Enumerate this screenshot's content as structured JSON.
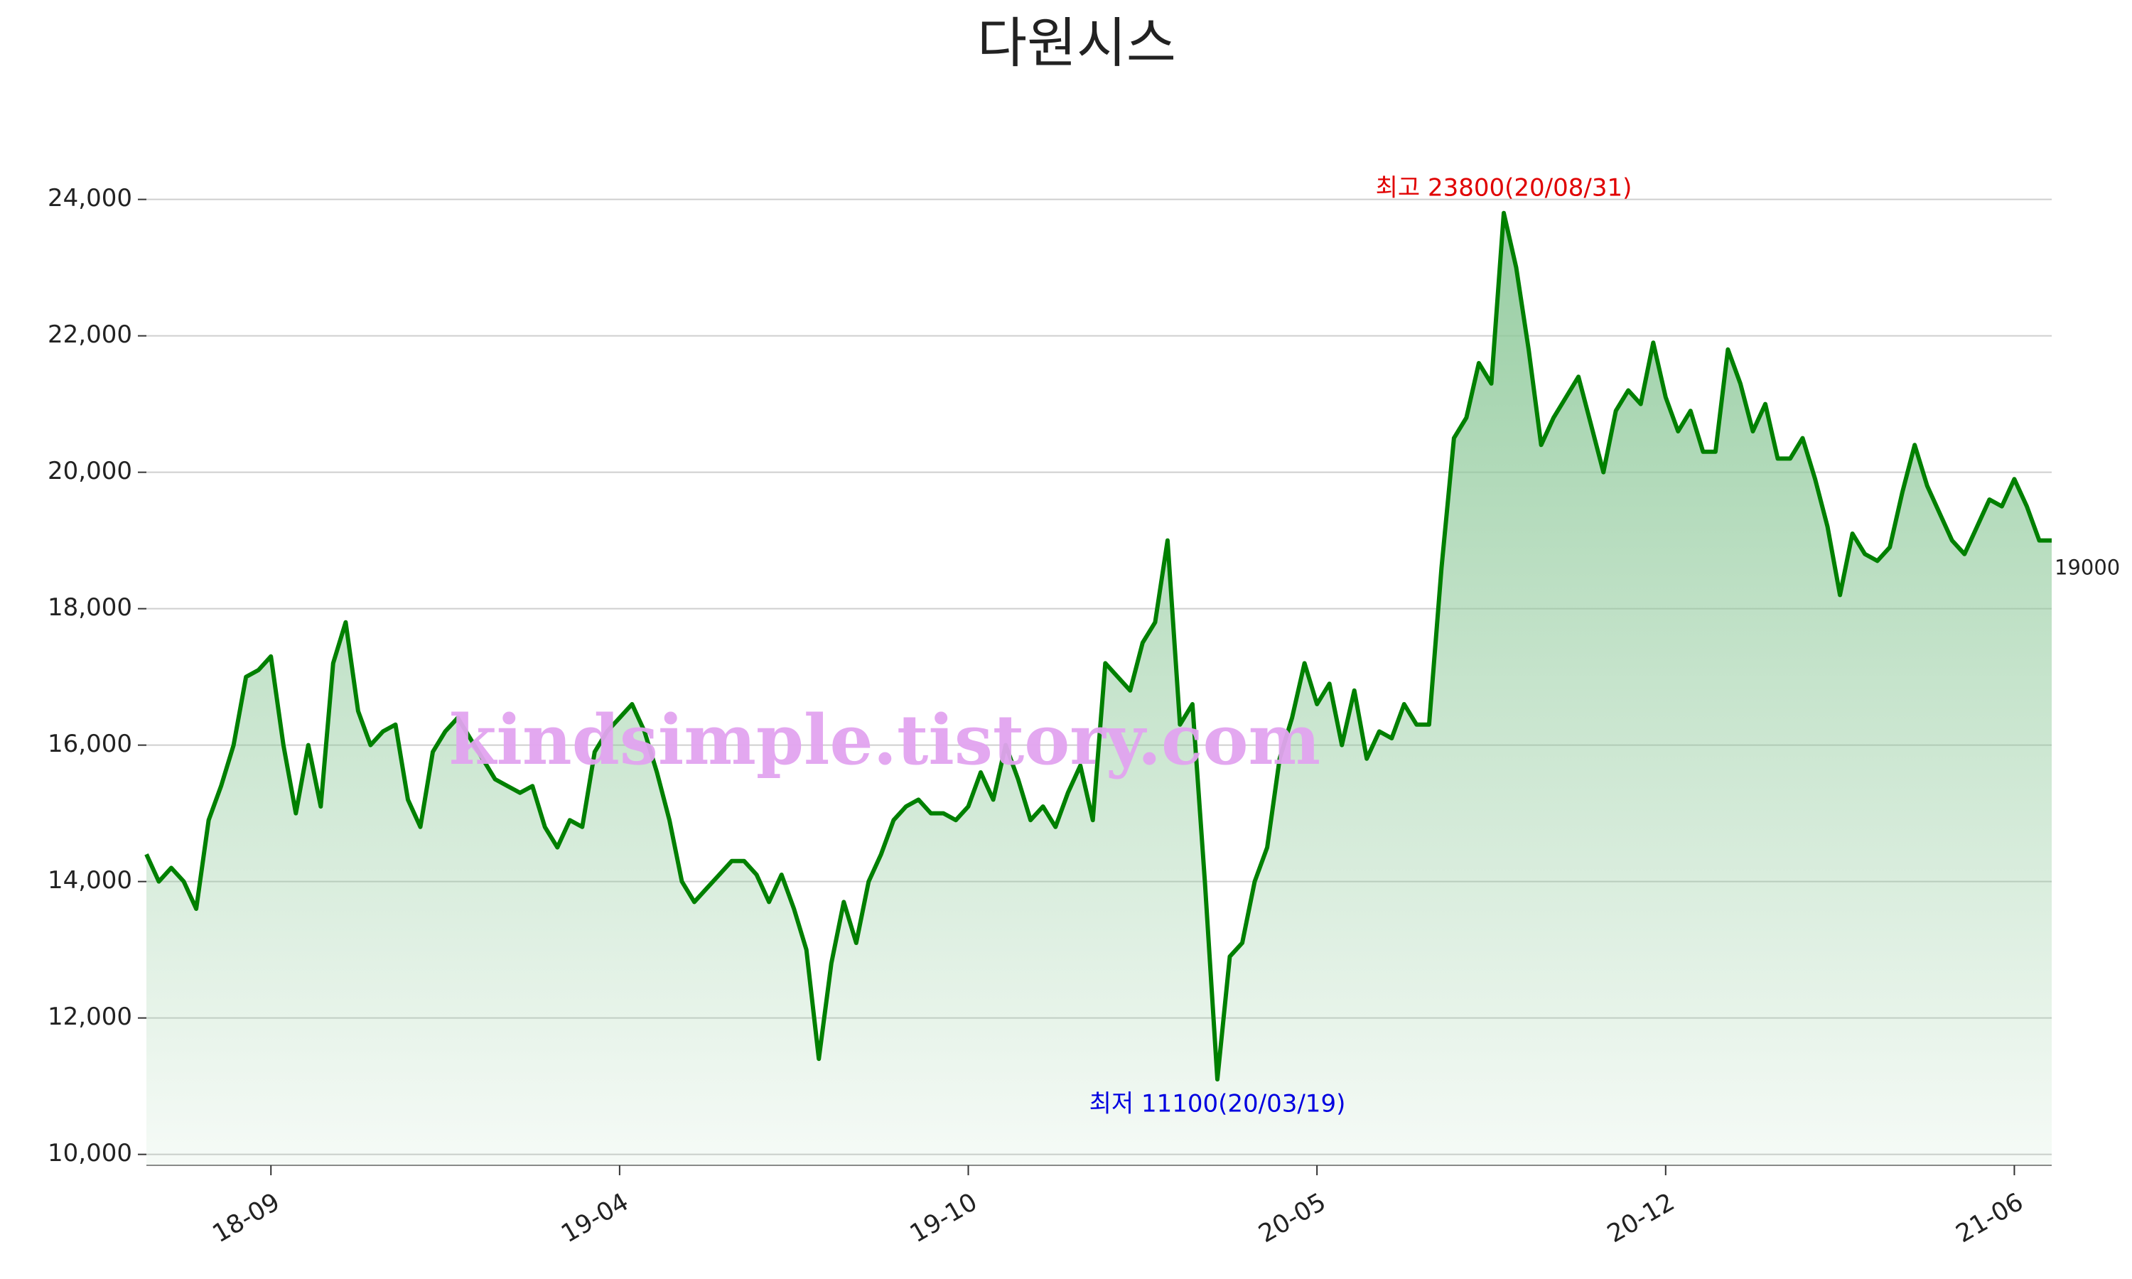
{
  "chart_data": {
    "type": "line",
    "title": "다원시스",
    "watermark": "kindsimple.tistory.com",
    "annotations": [
      "최고 23800(20/08/31)",
      "최저 11100(20/03/19)"
    ],
    "categories": [
      null,
      null,
      null,
      null,
      null,
      null,
      null,
      null,
      null,
      null,
      "18-09",
      null,
      null,
      null,
      null,
      null,
      null,
      null,
      null,
      null,
      null,
      null,
      null,
      null,
      null,
      null,
      null,
      null,
      null,
      null,
      null,
      null,
      null,
      null,
      null,
      null,
      null,
      null,
      "19-04",
      null,
      null,
      null,
      null,
      null,
      null,
      null,
      null,
      null,
      null,
      null,
      null,
      null,
      null,
      null,
      null,
      null,
      null,
      null,
      null,
      null,
      null,
      null,
      null,
      null,
      null,
      null,
      "19-10",
      null,
      null,
      null,
      null,
      null,
      null,
      null,
      null,
      null,
      null,
      null,
      null,
      null,
      null,
      null,
      null,
      null,
      null,
      null,
      null,
      null,
      null,
      null,
      null,
      null,
      null,
      null,
      "20-05",
      null,
      null,
      null,
      null,
      null,
      null,
      null,
      null,
      null,
      null,
      null,
      null,
      null,
      null,
      null,
      null,
      null,
      null,
      null,
      null,
      null,
      null,
      null,
      null,
      null,
      null,
      null,
      "20-12",
      null,
      null,
      null,
      null,
      null,
      null,
      null,
      null,
      null,
      null,
      null,
      null,
      null,
      null,
      null,
      null,
      null,
      null,
      null,
      null,
      null,
      null,
      null,
      null,
      null,
      null,
      null,
      "21-06",
      null,
      null,
      null
    ],
    "series": [
      {
        "color": "#008000",
        "fill_color": "#8cc898",
        "values": [
          14400,
          14000,
          14200,
          14000,
          13600,
          14900,
          15400,
          16000,
          17000,
          17100,
          17300,
          16000,
          15000,
          16000,
          15100,
          17200,
          17800,
          16500,
          16000,
          16200,
          16300,
          15200,
          14800,
          15900,
          16200,
          16400,
          16100,
          15800,
          15500,
          15400,
          15300,
          15400,
          14800,
          14500,
          14900,
          14800,
          15900,
          16200,
          16400,
          16600,
          16200,
          15600,
          14900,
          14000,
          13700,
          13900,
          14100,
          14300,
          14300,
          14100,
          13700,
          14100,
          13600,
          13000,
          11400,
          12800,
          13700,
          13100,
          14000,
          14400,
          14900,
          15100,
          15200,
          15000,
          15000,
          14900,
          15100,
          15600,
          15200,
          16000,
          15500,
          14900,
          15100,
          14800,
          15300,
          15700,
          14900,
          17200,
          17000,
          16800,
          17500,
          17800,
          19000,
          16300,
          16600,
          14000,
          11100,
          12900,
          13100,
          14000,
          14500,
          15800,
          16400,
          17200,
          16600,
          16900,
          16000,
          16800,
          15800,
          16200,
          16100,
          16600,
          16300,
          16300,
          18600,
          20500,
          20800,
          21600,
          21300,
          23800,
          23000,
          21800,
          20400,
          20800,
          21100,
          21400,
          20700,
          20000,
          20900,
          21200,
          21000,
          21900,
          21100,
          20600,
          20900,
          20300,
          20300,
          21800,
          21300,
          20600,
          21000,
          20200,
          20200,
          20500,
          19900,
          19200,
          18200,
          19100,
          18800,
          18700,
          18900,
          19700,
          20400,
          19800,
          19400,
          19000,
          18800,
          19200,
          19600,
          19500,
          19900,
          19500,
          19000,
          19000
        ]
      }
    ],
    "ylim": [
      9840,
      24840
    ],
    "yticks": [
      {
        "value": 10000,
        "label": "10,000"
      },
      {
        "value": 12000,
        "label": "12,000"
      },
      {
        "value": 14000,
        "label": "14,000"
      },
      {
        "value": 16000,
        "label": "16,000"
      },
      {
        "value": 18000,
        "label": "18,000"
      },
      {
        "value": 20000,
        "label": "20,000"
      },
      {
        "value": 22000,
        "label": "22,000"
      },
      {
        "value": 24000,
        "label": "24,000"
      }
    ],
    "grid": true,
    "max_color": "#e00000",
    "min_color": "#0000e0"
  }
}
